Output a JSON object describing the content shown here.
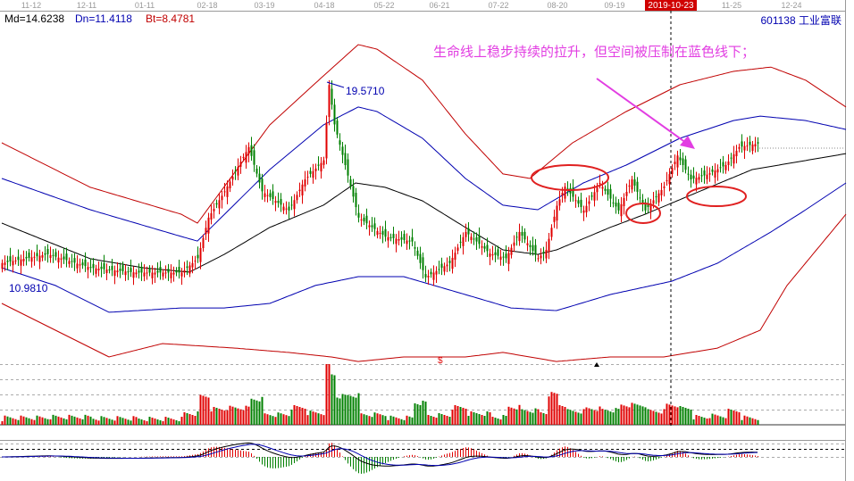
{
  "header": {
    "md_label": "Md=14.6238",
    "dn_label": "Dn=11.4118",
    "bt_label": "Bt=8.4781",
    "stock": "601138  工业富联"
  },
  "annotation": {
    "text": "生命线上稳步持续的拉升，但空间被压制在蓝色线下；",
    "color": "#e23ee2",
    "ellipse_color": "#e02020"
  },
  "colors": {
    "up": "#e00000",
    "down": "#008000",
    "mid": "#000000",
    "inner_band": "#0000b0",
    "outer_band": "#c00000"
  },
  "chart_data": {
    "type": "candlestick",
    "x_ticks": [
      "11-12",
      "12-11",
      "01-11",
      "02-18",
      "03-19",
      "04-18",
      "05-22",
      "06-21",
      "07-22",
      "08-20",
      "09-19",
      "2019-10-23",
      "11-25",
      "12-24"
    ],
    "cursor_date": "2019-10-23",
    "price_labels": {
      "high": "19.5710",
      "low": "10.9810"
    },
    "ylim": [
      7.5,
      21.5
    ],
    "close_path": [
      [
        0,
        12.0
      ],
      [
        17,
        12.37
      ],
      [
        33,
        11.8
      ],
      [
        50,
        11.6
      ],
      [
        67,
        11.6
      ],
      [
        73,
        12.2
      ],
      [
        77,
        13.9
      ],
      [
        83,
        15.0
      ],
      [
        92,
        16.85
      ],
      [
        97,
        15.0
      ],
      [
        107,
        14.2
      ],
      [
        113,
        15.5
      ],
      [
        120,
        16.3
      ],
      [
        122,
        19.45
      ],
      [
        124,
        17.8
      ],
      [
        128,
        16.1
      ],
      [
        133,
        13.9
      ],
      [
        143,
        13.1
      ],
      [
        153,
        12.9
      ],
      [
        158,
        11.4
      ],
      [
        167,
        12.0
      ],
      [
        173,
        13.3
      ],
      [
        182,
        12.4
      ],
      [
        188,
        12.2
      ],
      [
        193,
        13.3
      ],
      [
        200,
        12.2
      ],
      [
        203,
        12.55
      ],
      [
        207,
        14.4
      ],
      [
        210,
        15.2
      ],
      [
        217,
        14.2
      ],
      [
        223,
        15.35
      ],
      [
        230,
        14.2
      ],
      [
        235,
        15.5
      ],
      [
        240,
        14.2
      ],
      [
        247,
        15.2
      ],
      [
        252,
        16.5
      ],
      [
        257,
        15.5
      ],
      [
        263,
        15.7
      ],
      [
        270,
        16.1
      ],
      [
        275,
        16.85
      ],
      [
        282,
        17.0
      ]
    ],
    "bands": {
      "upper_outer": [
        [
          0,
          17.03
        ],
        [
          33,
          15.17
        ],
        [
          67,
          14.04
        ],
        [
          73,
          13.67
        ],
        [
          100,
          17.78
        ],
        [
          120,
          19.83
        ],
        [
          133,
          21.14
        ],
        [
          140,
          20.95
        ],
        [
          157,
          19.65
        ],
        [
          173,
          17.4
        ],
        [
          187,
          15.73
        ],
        [
          197,
          15.54
        ],
        [
          213,
          17.03
        ],
        [
          233,
          18.34
        ],
        [
          253,
          19.46
        ],
        [
          273,
          20.02
        ],
        [
          287,
          20.2
        ],
        [
          300,
          19.65
        ],
        [
          315,
          18.53
        ]
      ],
      "upper_inner": [
        [
          0,
          15.54
        ],
        [
          33,
          14.23
        ],
        [
          67,
          13.11
        ],
        [
          73,
          12.92
        ],
        [
          100,
          15.91
        ],
        [
          120,
          17.78
        ],
        [
          133,
          18.53
        ],
        [
          140,
          18.34
        ],
        [
          157,
          17.22
        ],
        [
          173,
          15.54
        ],
        [
          187,
          14.42
        ],
        [
          200,
          14.23
        ],
        [
          217,
          15.35
        ],
        [
          233,
          16.1
        ],
        [
          253,
          17.22
        ],
        [
          273,
          17.96
        ],
        [
          283,
          18.15
        ],
        [
          300,
          17.96
        ],
        [
          315,
          17.59
        ]
      ],
      "middle": [
        [
          0,
          13.67
        ],
        [
          33,
          12.18
        ],
        [
          53,
          11.8
        ],
        [
          70,
          11.62
        ],
        [
          83,
          12.36
        ],
        [
          100,
          13.49
        ],
        [
          120,
          14.42
        ],
        [
          132,
          15.35
        ],
        [
          143,
          15.17
        ],
        [
          157,
          14.6
        ],
        [
          173,
          13.49
        ],
        [
          187,
          12.55
        ],
        [
          200,
          12.36
        ],
        [
          207,
          12.55
        ],
        [
          227,
          13.49
        ],
        [
          240,
          14.04
        ],
        [
          260,
          14.98
        ],
        [
          280,
          15.91
        ],
        [
          300,
          16.29
        ],
        [
          315,
          16.58
        ]
      ],
      "lower_inner": [
        [
          0,
          11.8
        ],
        [
          20,
          11.06
        ],
        [
          40,
          9.94
        ],
        [
          67,
          10.12
        ],
        [
          83,
          10.12
        ],
        [
          100,
          10.31
        ],
        [
          117,
          11.06
        ],
        [
          133,
          11.43
        ],
        [
          150,
          11.43
        ],
        [
          173,
          10.68
        ],
        [
          190,
          10.12
        ],
        [
          207,
          10.01
        ],
        [
          227,
          10.68
        ],
        [
          250,
          11.24
        ],
        [
          267,
          11.99
        ],
        [
          287,
          13.3
        ],
        [
          300,
          14.23
        ],
        [
          315,
          15.35
        ]
      ],
      "lower_outer": [
        [
          0,
          10.31
        ],
        [
          20,
          9.19
        ],
        [
          40,
          8.07
        ],
        [
          60,
          8.63
        ],
        [
          87,
          8.44
        ],
        [
          107,
          8.26
        ],
        [
          123,
          8.07
        ],
        [
          133,
          7.88
        ],
        [
          150,
          8.07
        ],
        [
          173,
          8.07
        ],
        [
          187,
          8.26
        ],
        [
          207,
          7.88
        ],
        [
          227,
          8.07
        ],
        [
          247,
          8.07
        ],
        [
          267,
          8.44
        ],
        [
          283,
          9.19
        ],
        [
          293,
          11.06
        ],
        [
          315,
          14.04
        ]
      ]
    },
    "last_bar": 282,
    "volume_spike_bar": 122
  }
}
